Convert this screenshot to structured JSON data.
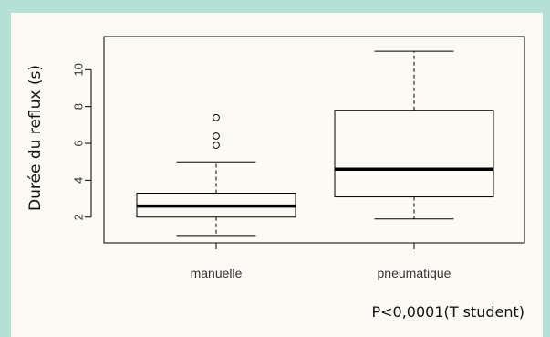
{
  "chart_data": {
    "type": "boxplot",
    "title": "",
    "xlabel": "",
    "ylabel": "Durée du reflux (s)",
    "ylim": [
      0.6,
      11.8
    ],
    "yticks": [
      "2",
      "4",
      "6",
      "8",
      "10"
    ],
    "categories": [
      "manuelle",
      "pneumatique"
    ],
    "boxes": [
      {
        "category": "manuelle",
        "whisker_low": 1.0,
        "q1": 2.0,
        "median": 2.6,
        "q3": 3.3,
        "whisker_high": 5.0,
        "outliers": [
          5.9,
          6.4,
          7.4
        ]
      },
      {
        "category": "pneumatique",
        "whisker_low": 1.9,
        "q1": 3.1,
        "median": 4.6,
        "q3": 7.8,
        "whisker_high": 11.0,
        "outliers": []
      }
    ],
    "grid": false,
    "annotation": "P<0,0001(T student)"
  },
  "colors": {
    "frame": "#b5e0d6",
    "panel": "#fdfaf3",
    "ink": "#000000"
  }
}
